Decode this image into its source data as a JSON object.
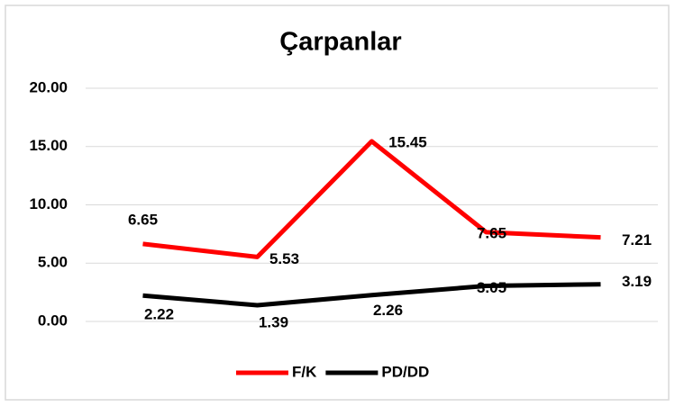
{
  "chart_data": {
    "type": "line",
    "title": "Çarpanlar",
    "categories": [
      null,
      null,
      null,
      null,
      null
    ],
    "series": [
      {
        "name": "F/K",
        "color": "#ff0000",
        "values": [
          6.65,
          5.53,
          15.45,
          7.65,
          7.21
        ]
      },
      {
        "name": "PD/DD",
        "color": "#000000",
        "values": [
          2.22,
          1.39,
          2.26,
          3.05,
          3.19
        ]
      }
    ],
    "ylim": [
      0,
      20
    ],
    "yticks": [
      {
        "value": 0,
        "label": "0.00"
      },
      {
        "value": 5,
        "label": "5.00"
      },
      {
        "value": 10,
        "label": "10.00"
      },
      {
        "value": 15,
        "label": "15.00"
      },
      {
        "value": 20,
        "label": "20.00"
      }
    ],
    "grid": true,
    "legend": "bottom"
  }
}
